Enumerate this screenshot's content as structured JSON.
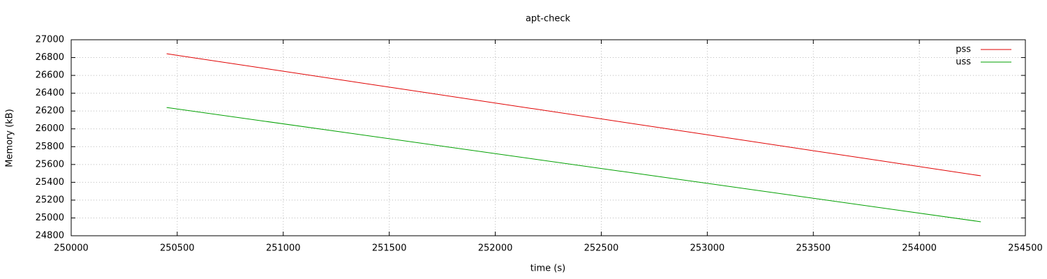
{
  "chart_data": {
    "type": "line",
    "title": "apt-check",
    "xlabel": "time (s)",
    "ylabel": "Memory (kB)",
    "xlim": [
      250000,
      254500
    ],
    "xticks": [
      250000,
      250500,
      251000,
      251500,
      252000,
      252500,
      253000,
      253500,
      254000,
      254500
    ],
    "ylim": [
      24800,
      27000
    ],
    "yticks": [
      24800,
      25000,
      25200,
      25400,
      25600,
      25800,
      26000,
      26200,
      26400,
      26600,
      26800,
      27000
    ],
    "grid": true,
    "legend": "top-right",
    "series": [
      {
        "name": "pss",
        "color": "#e00000",
        "x": [
          250450,
          254290
        ],
        "values": [
          26843,
          25473
        ]
      },
      {
        "name": "uss",
        "color": "#00a000",
        "x": [
          250450,
          254290
        ],
        "values": [
          26240,
          24957
        ]
      }
    ]
  }
}
